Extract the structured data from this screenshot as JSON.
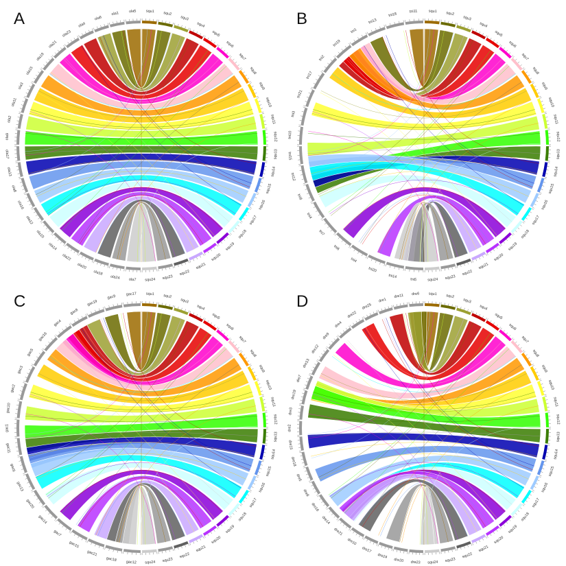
{
  "figure": {
    "description": "Four circos plots of syntenic relationships between squ chromosomes and four other genomes",
    "ribbon_colors": [
      "#9c6b00",
      "#6b6b00",
      "#9ca032",
      "#c00000",
      "#e60000",
      "#ff00cc",
      "#ffc0cb",
      "#ff9900",
      "#ffcc00",
      "#ffff33",
      "#ccff33",
      "#33ff00",
      "#3a7d00",
      "#0000b0",
      "#6495ed",
      "#9ecbff",
      "#00ffff",
      "#ccffff",
      "#8b00d9",
      "#b833ff",
      "#c9a8ff",
      "#606060",
      "#999999",
      "#cccccc"
    ],
    "squ_colors": {
      "squ1": "#9c6b00",
      "squ2": "#6b6b00",
      "squ3": "#9ca032",
      "squ4": "#c00000",
      "squ5": "#e60000",
      "squ6": "#ff00cc",
      "squ7": "#ffc0cb",
      "squ8": "#ff9900",
      "squ9": "#ffcc00",
      "squ10": "#ffff33",
      "squ11": "#ccff33",
      "squ12": "#33ff00",
      "squ13": "#3a7d00",
      "squ14": "#0000b0",
      "squ15": "#6495ed",
      "squ16": "#9ecbff",
      "squ17": "#00ffff",
      "squ18": "#ccffff",
      "squ19": "#8b00d9",
      "squ20": "#b833ff",
      "squ21": "#c9a8ff",
      "squ22": "#606060",
      "squ23": "#999999",
      "squ24": "#cccccc"
    },
    "other_genome_color": "#999999"
  },
  "panels": [
    {
      "letter": "A",
      "squ": [
        "squ1",
        "squ2",
        "squ3",
        "squ4",
        "squ5",
        "squ6",
        "squ7",
        "squ8",
        "squ9",
        "squ10",
        "squ11",
        "squ12",
        "squ13",
        "squ14",
        "squ15",
        "squ16",
        "squ17",
        "squ18",
        "squ19",
        "squ20",
        "squ21",
        "squ22",
        "squ23",
        "squ24"
      ],
      "other": [
        "ola7",
        "ola24",
        "ola18",
        "ola20",
        "ola22",
        "ola14",
        "ola10",
        "ola12",
        "ola16",
        "ola8",
        "ola13",
        "ola17",
        "ola9",
        "ola2",
        "ola11",
        "ola3",
        "ola15",
        "ola19",
        "ola21",
        "ola23",
        "ola4",
        "ola6",
        "ola1",
        "ola5"
      ]
    },
    {
      "letter": "B",
      "squ": [
        "squ1",
        "squ2",
        "squ3",
        "squ4",
        "squ5",
        "squ6",
        "squ7",
        "squ8",
        "squ9",
        "squ10",
        "squ11",
        "squ12",
        "squ13",
        "squ14",
        "squ15",
        "squ16",
        "squ17",
        "squ18",
        "squ19",
        "squ20",
        "squ21",
        "squ22",
        "squ23",
        "squ24"
      ],
      "other": [
        "tni5",
        "tni14",
        "tni20",
        "tni4",
        "tni6",
        "tni7",
        "tni4",
        "tni8",
        "tni12",
        "tni15",
        "tni10",
        "tni3",
        "tni21",
        "tni17",
        "tni2",
        "tni19",
        "tni1",
        "tni13",
        "tni18",
        "tni11"
      ]
    },
    {
      "letter": "C",
      "squ": [
        "squ1",
        "squ2",
        "squ3",
        "squ4",
        "squ5",
        "squ6",
        "squ7",
        "squ8",
        "squ9",
        "squ10",
        "squ11",
        "squ12",
        "squ13",
        "squ14",
        "squ15",
        "squ16",
        "squ17",
        "squ18",
        "squ19",
        "squ20",
        "squ21",
        "squ22",
        "squ23",
        "squ24"
      ],
      "other": [
        "gac12",
        "gac18",
        "gac21",
        "gac15",
        "gac7",
        "gac14",
        "gac20",
        "gac13",
        "gac6",
        "gac11",
        "gac1",
        "gac10",
        "gac2",
        "gac3",
        "gac5",
        "gac16",
        "gac4",
        "gac8",
        "gac19",
        "gac9",
        "gac17"
      ]
    },
    {
      "letter": "D",
      "squ": [
        "squ1",
        "squ2",
        "squ3",
        "squ4",
        "squ5",
        "squ6",
        "squ7",
        "squ8",
        "squ9",
        "squ10",
        "squ11",
        "squ12",
        "squ13",
        "squ14",
        "squ15",
        "squ16",
        "squ17",
        "squ18",
        "squ19",
        "squ20",
        "squ21",
        "squ22",
        "squ23",
        "squ24"
      ],
      "other": [
        "dre23",
        "dre20",
        "dre24",
        "dre17",
        "dre10",
        "dre21",
        "dre14",
        "dre16",
        "dre8",
        "dre5",
        "dre18",
        "dre15",
        "dre2",
        "dre3",
        "dre19",
        "dre7",
        "dre13",
        "dre12",
        "dre9",
        "dre4",
        "dre22",
        "dre25",
        "dre1",
        "dre11",
        "dre6"
      ]
    }
  ]
}
